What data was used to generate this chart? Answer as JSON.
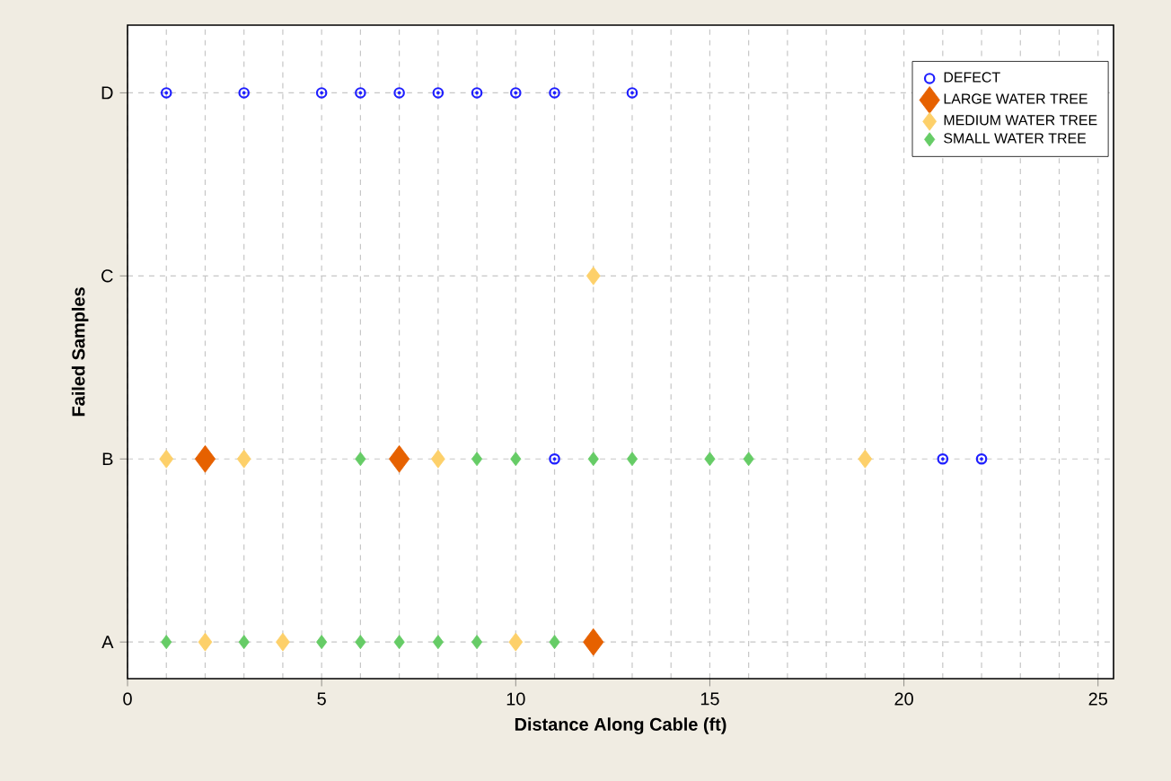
{
  "chart_data": {
    "type": "scatter",
    "orientation": "horizontal",
    "xlabel": "Distance Along Cable (ft)",
    "ylabel": "Failed Samples",
    "categories": [
      "D",
      "C",
      "B",
      "A"
    ],
    "xlim": [
      0,
      25.4
    ],
    "xticks": [
      0,
      5,
      10,
      15,
      20,
      25
    ],
    "grid": true,
    "legend": "top right",
    "series": [
      {
        "name": "DEFECT",
        "color": "#1f1fff",
        "marker": "circle",
        "x": [
          "D",
          "D",
          "D",
          "D",
          "D",
          "D",
          "D",
          "D",
          "D",
          "D",
          "B",
          "B",
          "B"
        ],
        "values": [
          1,
          3,
          5,
          6,
          7,
          8,
          9,
          10,
          11,
          13,
          11,
          21,
          22
        ]
      },
      {
        "name": "LARGE WATER TREE",
        "color": "#e66100",
        "marker": "diamond",
        "x": [
          "B",
          "B",
          "A"
        ],
        "values": [
          2,
          7,
          12
        ]
      },
      {
        "name": "MEDIUM WATER TREE",
        "color": "#fdd06a",
        "marker": "diamond",
        "x": [
          "C",
          "B",
          "B",
          "B",
          "B",
          "A",
          "A",
          "A"
        ],
        "values": [
          12,
          1,
          3,
          8,
          19,
          2,
          4,
          10
        ]
      },
      {
        "name": "SMALL WATER TREE",
        "color": "#66cc66",
        "marker": "diamond",
        "x": [
          "B",
          "B",
          "B",
          "B",
          "B",
          "B",
          "B",
          "A",
          "A",
          "A",
          "A",
          "A",
          "A",
          "A",
          "A"
        ],
        "values": [
          6,
          9,
          10,
          12,
          13,
          15,
          16,
          1,
          3,
          5,
          6,
          7,
          8,
          9,
          11
        ]
      }
    ]
  }
}
